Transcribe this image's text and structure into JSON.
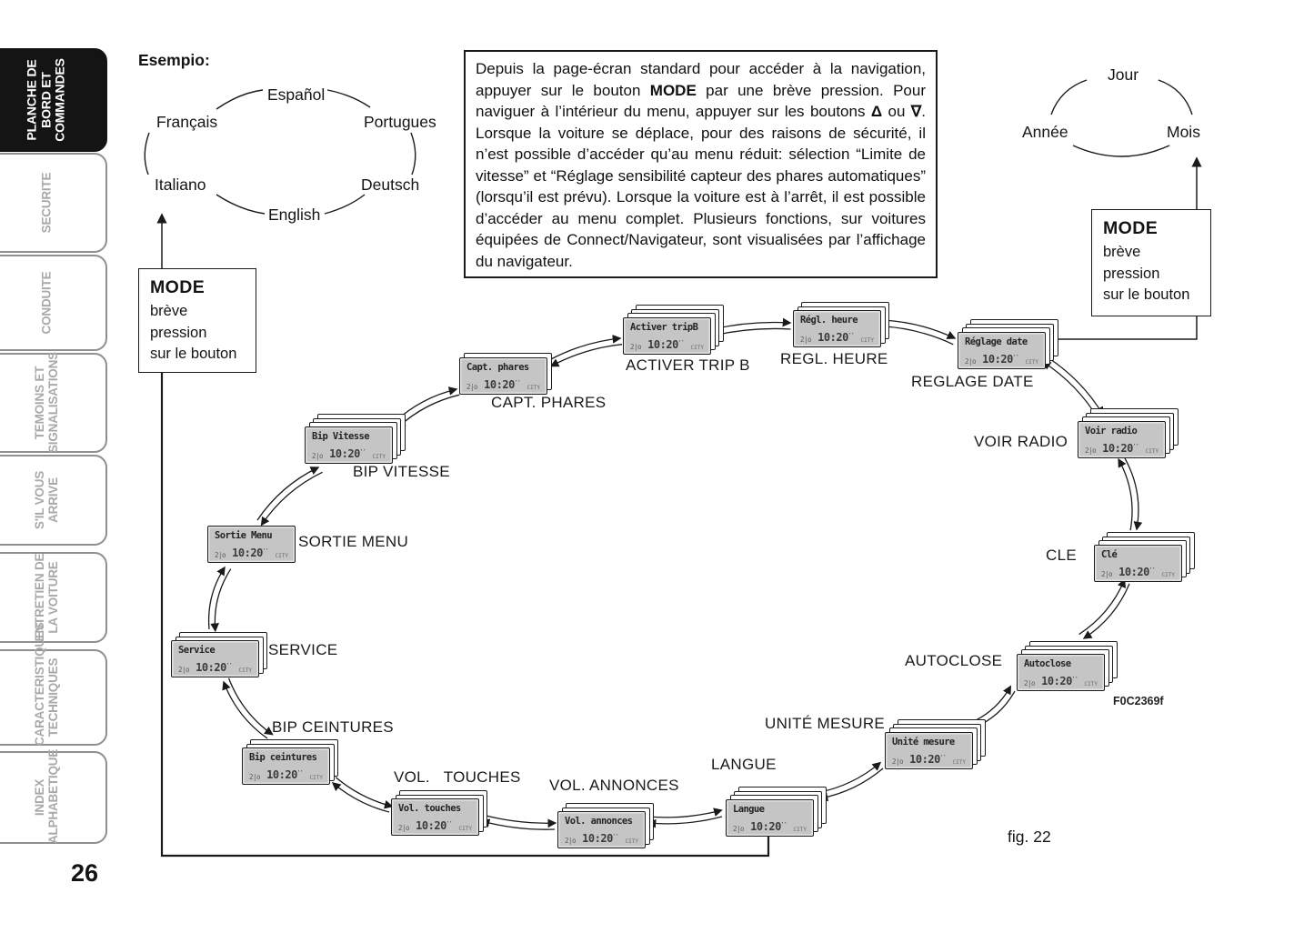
{
  "page": {
    "number": "26",
    "esempio_label": "Esempio:",
    "fig_label": "fig. 22",
    "code": "F0C2369f"
  },
  "sidebar": {
    "tabs": [
      {
        "label": "PLANCHE DE\nBORD ET\nCOMMANDES",
        "active": true
      },
      {
        "label": "SECURITE",
        "active": false
      },
      {
        "label": "CONDUITE",
        "active": false
      },
      {
        "label": "TEMOINS ET\nSIGNALISATIONS",
        "active": false
      },
      {
        "label": "S'IL VOUS\nARRIVE",
        "active": false
      },
      {
        "label": "ENTRETIEN DE\nLA VOITURE",
        "active": false
      },
      {
        "label": "CARACTERISTIQUES\nTECHNIQUES",
        "active": false
      },
      {
        "label": "INDEX\nALPHABETIQUE",
        "active": false
      }
    ]
  },
  "language_ring": {
    "items": [
      "Español",
      "Français",
      "Portugues",
      "Italiano",
      "Deutsch",
      "English"
    ]
  },
  "date_ring": {
    "items": [
      "Jour",
      "Année",
      "Mois"
    ]
  },
  "mode_box_left": {
    "title": "MODE",
    "lines": [
      "brève",
      "pression",
      "sur le bouton"
    ]
  },
  "mode_box_right": {
    "title": "MODE",
    "lines": [
      "brève",
      "pression",
      "sur le bouton"
    ]
  },
  "instruction_box": {
    "segments": [
      {
        "text": "Depuis la page-écran standard pour accéder à la navigation, appuyer sur le bouton ",
        "bold": false
      },
      {
        "text": "MODE",
        "bold": true
      },
      {
        "text": " par une brève pression. Pour naviguer à l’intérieur du menu, appuyer sur les boutons ",
        "bold": false
      },
      {
        "text": "Δ",
        "bold": true
      },
      {
        "text": " ou ",
        "bold": false
      },
      {
        "text": "∇",
        "bold": true
      },
      {
        "text": ". Lorsque la voiture se déplace, pour des raisons de sécurité, il n’est possible d’accéder qu’au menu réduit: sélection “Limite de vitesse” et “Réglage sensibilité capteur des phares automatiques” (lorsqu’il est prévu). Lorsque la voiture est à l’arrêt, il est possible d’accéder au menu complet. Plusieurs fonctions, sur voitures équipées de Connect/Navigateur, sont visualisées par l’affichage du navigateur.",
        "bold": false
      }
    ]
  },
  "lcd": {
    "temp_icon": "2|o",
    "time": "10:20",
    "time_sup": "''",
    "mode_indicator": "CITY"
  },
  "screens": [
    {
      "id": "activer-tripb",
      "lcd_title": "Activer tripB",
      "label": "ACTIVER TRIP B"
    },
    {
      "id": "regl-heure",
      "lcd_title": "Régl. heure",
      "label": "REGL. HEURE"
    },
    {
      "id": "reglage-date",
      "lcd_title": "Réglage date",
      "label": "REGLAGE DATE"
    },
    {
      "id": "voir-radio",
      "lcd_title": "Voir radio",
      "label": "VOIR RADIO"
    },
    {
      "id": "cle",
      "lcd_title": "Clé",
      "label": "CLE"
    },
    {
      "id": "autoclose",
      "lcd_title": "Autoclose",
      "label": "AUTOCLOSE"
    },
    {
      "id": "unite-mesure",
      "lcd_title": "Unité mesure",
      "label": "UNITÉ MESURE"
    },
    {
      "id": "langue",
      "lcd_title": "Langue",
      "label": "LANGUE"
    },
    {
      "id": "vol-annonces",
      "lcd_title": "Vol. annonces",
      "label": "VOL. ANNONCES"
    },
    {
      "id": "vol-touches",
      "lcd_title": "Vol. touches",
      "label": "VOL.   TOUCHES"
    },
    {
      "id": "bip-ceintures",
      "lcd_title": "Bip ceintures",
      "label": "BIP CEINTURES"
    },
    {
      "id": "service",
      "lcd_title": "Service",
      "label": "SERVICE"
    },
    {
      "id": "sortie-menu",
      "lcd_title": "Sortie Menu",
      "label": "SORTIE MENU"
    },
    {
      "id": "bip-vitesse",
      "lcd_title": "Bip Vitesse",
      "label": "BIP VITESSE"
    },
    {
      "id": "capt-phares",
      "lcd_title": "Capt. phares",
      "label": "CAPT. PHARES"
    }
  ]
}
